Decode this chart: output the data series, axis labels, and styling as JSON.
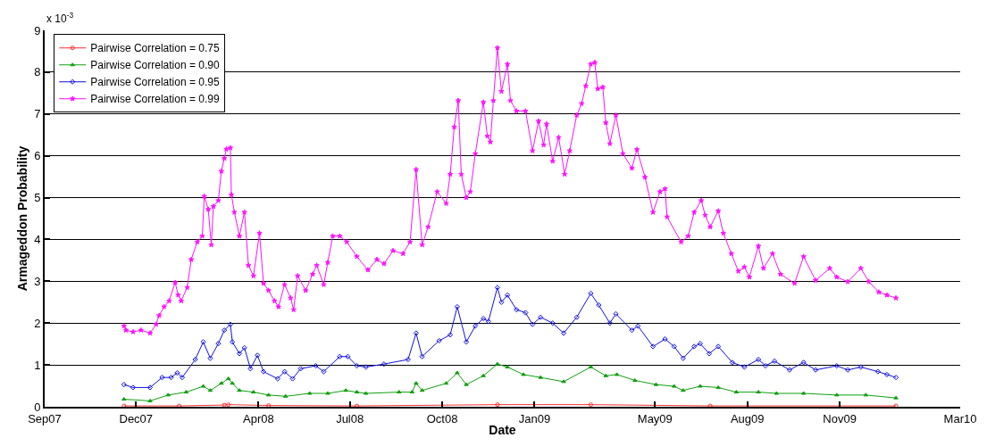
{
  "chart_data": {
    "type": "line",
    "xlabel": "Date",
    "ylabel": "Armageddon Probability",
    "annotations": [
      "x 10$^{-3}$"
    ],
    "xlim": [
      "2007-09-01",
      "2010-03-01"
    ],
    "xticks": [
      {
        "value": "2007-09-01",
        "label": "Sep07"
      },
      {
        "value": "2007-12-01",
        "label": "Dec07"
      },
      {
        "value": "2008-04-01",
        "label": "Apr08"
      },
      {
        "value": "2008-07-01",
        "label": "Jul08"
      },
      {
        "value": "2008-10-01",
        "label": "Oct08"
      },
      {
        "value": "2009-01-01",
        "label": "Jan09"
      },
      {
        "value": "2009-05-01",
        "label": "May09"
      },
      {
        "value": "2009-08-01",
        "label": "Aug09"
      },
      {
        "value": "2009-11-01",
        "label": "Nov09"
      },
      {
        "value": "2010-03-01",
        "label": "Mar10"
      }
    ],
    "ylim": [
      0,
      9
    ],
    "yticks": [
      0,
      1,
      2,
      3,
      4,
      5,
      6,
      7,
      8,
      9
    ],
    "grid": "y",
    "legend": "top left",
    "line_style": "solid",
    "series": [
      {
        "name": "Pairwise Correlation = 0.75",
        "color": "#ff3030",
        "marker": "circle",
        "x": [
          "2007-11-19",
          "2008-01-13",
          "2008-02-27",
          "2008-03-02",
          "2008-04-11",
          "2008-07-08",
          "2008-11-25",
          "2009-02-26",
          "2009-06-25",
          "2009-12-27"
        ],
        "values": [
          0.02,
          0.02,
          0.04,
          0.05,
          0.03,
          0.02,
          0.05,
          0.05,
          0.02,
          0.02
        ]
      },
      {
        "name": "Pairwise Correlation = 0.90",
        "color": "#10a010",
        "marker": "triangle",
        "x": [
          "2007-11-19",
          "2007-12-15",
          "2008-01-02",
          "2008-01-20",
          "2008-02-06",
          "2008-02-13",
          "2008-02-24",
          "2008-03-02",
          "2008-03-06",
          "2008-03-13",
          "2008-03-27",
          "2008-04-11",
          "2008-04-28",
          "2008-05-22",
          "2008-06-09",
          "2008-06-27",
          "2008-07-08",
          "2008-07-17",
          "2008-08-19",
          "2008-09-01",
          "2008-09-05",
          "2008-09-11",
          "2008-10-05",
          "2008-10-16",
          "2008-10-25",
          "2008-11-11",
          "2008-11-25",
          "2008-12-05",
          "2008-12-21",
          "2009-01-07",
          "2009-01-30",
          "2009-02-26",
          "2009-03-13",
          "2009-03-24",
          "2009-04-11",
          "2009-05-02",
          "2009-05-20",
          "2009-05-29",
          "2009-06-15",
          "2009-07-03",
          "2009-07-21",
          "2009-08-12",
          "2009-08-30",
          "2009-09-26",
          "2009-10-29",
          "2009-11-27",
          "2009-12-27"
        ],
        "values": [
          0.18,
          0.14,
          0.28,
          0.35,
          0.49,
          0.39,
          0.56,
          0.67,
          0.56,
          0.39,
          0.35,
          0.28,
          0.25,
          0.32,
          0.32,
          0.39,
          0.35,
          0.32,
          0.35,
          0.35,
          0.56,
          0.39,
          0.56,
          0.81,
          0.53,
          0.74,
          1.02,
          0.95,
          0.77,
          0.7,
          0.6,
          0.95,
          0.74,
          0.77,
          0.63,
          0.53,
          0.49,
          0.39,
          0.49,
          0.46,
          0.35,
          0.35,
          0.32,
          0.32,
          0.28,
          0.28,
          0.21
        ]
      },
      {
        "name": "Pairwise Correlation = 0.95",
        "color": "#1010e0",
        "marker": "diamond",
        "x": [
          "2007-11-19",
          "2007-11-28",
          "2007-12-15",
          "2007-12-27",
          "2008-01-05",
          "2008-01-11",
          "2008-01-16",
          "2008-01-29",
          "2008-02-06",
          "2008-02-13",
          "2008-02-21",
          "2008-02-27",
          "2008-03-04",
          "2008-03-06",
          "2008-03-13",
          "2008-03-18",
          "2008-03-24",
          "2008-03-31",
          "2008-04-06",
          "2008-04-20",
          "2008-04-27",
          "2008-05-05",
          "2008-05-13",
          "2008-05-28",
          "2008-06-05",
          "2008-06-21",
          "2008-06-29",
          "2008-07-08",
          "2008-07-17",
          "2008-08-04",
          "2008-08-28",
          "2008-09-05",
          "2008-09-11",
          "2008-09-28",
          "2008-10-09",
          "2008-10-16",
          "2008-10-25",
          "2008-11-03",
          "2008-11-11",
          "2008-11-16",
          "2008-11-25",
          "2008-11-29",
          "2008-12-05",
          "2008-12-14",
          "2008-12-23",
          "2008-12-30",
          "2009-01-07",
          "2009-01-19",
          "2009-01-30",
          "2009-02-12",
          "2009-02-26",
          "2009-03-06",
          "2009-03-17",
          "2009-03-23",
          "2009-04-08",
          "2009-04-14",
          "2009-04-29",
          "2009-05-11",
          "2009-05-20",
          "2009-05-29",
          "2009-06-09",
          "2009-06-15",
          "2009-06-24",
          "2009-07-03",
          "2009-07-17",
          "2009-07-29",
          "2009-08-12",
          "2009-08-19",
          "2009-08-28",
          "2009-09-12",
          "2009-09-26",
          "2009-10-08",
          "2009-10-29",
          "2009-11-09",
          "2009-11-22",
          "2009-12-09",
          "2009-12-18",
          "2009-12-27"
        ],
        "values": [
          0.53,
          0.46,
          0.46,
          0.7,
          0.7,
          0.81,
          0.7,
          1.13,
          1.55,
          1.16,
          1.51,
          1.83,
          1.97,
          1.55,
          1.27,
          1.41,
          0.91,
          1.23,
          0.84,
          0.67,
          0.84,
          0.67,
          0.91,
          0.98,
          0.84,
          1.2,
          1.2,
          0.98,
          0.95,
          1.02,
          1.13,
          1.76,
          1.2,
          1.58,
          1.72,
          2.39,
          1.55,
          1.93,
          2.11,
          2.04,
          2.85,
          2.5,
          2.67,
          2.32,
          2.25,
          1.97,
          2.14,
          2.0,
          1.76,
          2.14,
          2.71,
          2.43,
          2.0,
          2.22,
          1.83,
          1.93,
          1.44,
          1.62,
          1.44,
          1.16,
          1.44,
          1.51,
          1.27,
          1.44,
          1.06,
          0.95,
          1.13,
          0.98,
          1.09,
          0.88,
          1.06,
          0.88,
          0.98,
          0.88,
          0.95,
          0.84,
          0.77,
          0.7
        ]
      },
      {
        "name": "Pairwise Correlation = 0.99",
        "color": "#ff10ff",
        "marker": "star",
        "x": [
          "2007-11-19",
          "2007-11-21",
          "2007-11-28",
          "2007-12-06",
          "2007-12-15",
          "2007-12-21",
          "2007-12-24",
          "2007-12-29",
          "2008-01-03",
          "2008-01-09",
          "2008-01-12",
          "2008-01-15",
          "2008-01-21",
          "2008-01-25",
          "2008-01-31",
          "2008-02-05",
          "2008-02-07",
          "2008-02-11",
          "2008-02-14",
          "2008-02-16",
          "2008-02-21",
          "2008-02-24",
          "2008-02-27",
          "2008-02-29",
          "2008-03-04",
          "2008-03-05",
          "2008-03-08",
          "2008-03-13",
          "2008-03-18",
          "2008-03-22",
          "2008-03-27",
          "2008-04-02",
          "2008-04-06",
          "2008-04-11",
          "2008-04-17",
          "2008-04-21",
          "2008-04-27",
          "2008-05-03",
          "2008-05-06",
          "2008-05-10",
          "2008-05-18",
          "2008-05-25",
          "2008-05-29",
          "2008-06-05",
          "2008-06-09",
          "2008-06-14",
          "2008-06-21",
          "2008-06-28",
          "2008-07-08",
          "2008-07-19",
          "2008-07-28",
          "2008-08-04",
          "2008-08-13",
          "2008-08-23",
          "2008-08-30",
          "2008-09-05",
          "2008-09-11",
          "2008-09-17",
          "2008-09-26",
          "2008-10-05",
          "2008-10-09",
          "2008-10-13",
          "2008-10-17",
          "2008-10-20",
          "2008-10-25",
          "2008-10-29",
          "2008-11-03",
          "2008-11-11",
          "2008-11-15",
          "2008-11-18",
          "2008-11-21",
          "2008-11-25",
          "2008-11-29",
          "2008-12-05",
          "2008-12-08",
          "2008-12-14",
          "2008-12-23",
          "2008-12-30",
          "2009-01-05",
          "2009-01-10",
          "2009-01-13",
          "2009-01-19",
          "2009-01-25",
          "2009-01-31",
          "2009-02-05",
          "2009-02-12",
          "2009-02-17",
          "2009-02-21",
          "2009-02-26",
          "2009-03-02",
          "2009-03-05",
          "2009-03-10",
          "2009-03-13",
          "2009-03-17",
          "2009-03-23",
          "2009-03-30",
          "2009-04-08",
          "2009-04-13",
          "2009-04-21",
          "2009-04-29",
          "2009-05-06",
          "2009-05-11",
          "2009-05-13",
          "2009-05-27",
          "2009-06-03",
          "2009-06-09",
          "2009-06-16",
          "2009-06-20",
          "2009-06-25",
          "2009-07-03",
          "2009-07-08",
          "2009-07-16",
          "2009-07-23",
          "2009-07-29",
          "2009-08-03",
          "2009-08-12",
          "2009-08-17",
          "2009-08-26",
          "2009-09-03",
          "2009-09-17",
          "2009-09-26",
          "2009-10-08",
          "2009-10-22",
          "2009-10-29",
          "2009-11-09",
          "2009-11-22",
          "2009-11-30",
          "2009-12-10",
          "2009-12-18",
          "2009-12-27"
        ],
        "values": [
          1.93,
          1.83,
          1.79,
          1.83,
          1.76,
          1.97,
          2.18,
          2.39,
          2.53,
          2.97,
          2.67,
          2.53,
          2.85,
          3.52,
          3.94,
          4.08,
          5.03,
          4.72,
          3.87,
          4.79,
          4.93,
          5.63,
          5.94,
          6.16,
          6.19,
          5.07,
          4.65,
          4.08,
          4.65,
          3.38,
          3.13,
          4.15,
          2.95,
          2.78,
          2.53,
          2.39,
          2.92,
          2.6,
          2.32,
          3.13,
          2.78,
          3.17,
          3.38,
          2.92,
          3.45,
          4.08,
          4.08,
          3.94,
          3.59,
          3.27,
          3.52,
          3.42,
          3.73,
          3.66,
          3.94,
          5.67,
          3.87,
          4.3,
          5.14,
          4.86,
          5.56,
          6.69,
          7.32,
          5.56,
          5.0,
          5.14,
          6.05,
          7.28,
          6.47,
          6.33,
          7.32,
          8.58,
          7.54,
          8.19,
          7.32,
          7.07,
          7.07,
          6.12,
          6.83,
          6.26,
          6.76,
          5.87,
          6.44,
          5.56,
          6.12,
          6.97,
          7.25,
          7.67,
          8.19,
          8.23,
          7.6,
          7.64,
          6.79,
          6.29,
          6.97,
          6.05,
          5.7,
          6.15,
          5.49,
          4.65,
          5.14,
          5.21,
          4.54,
          3.94,
          4.08,
          4.65,
          4.93,
          4.58,
          4.3,
          4.68,
          4.15,
          3.66,
          3.24,
          3.34,
          3.1,
          3.84,
          3.31,
          3.66,
          3.17,
          2.95,
          3.59,
          3.02,
          3.31,
          3.1,
          2.99,
          3.31,
          2.99,
          2.74,
          2.67,
          2.6
        ]
      }
    ]
  }
}
